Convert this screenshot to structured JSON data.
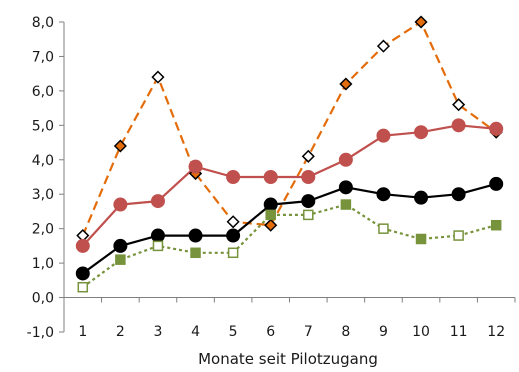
{
  "chart_data": {
    "type": "line",
    "title": "",
    "xlabel": "Monate seit Pilotzugang",
    "ylabel": "",
    "x": [
      1,
      2,
      3,
      4,
      5,
      6,
      7,
      8,
      9,
      10,
      11,
      12
    ],
    "ylim": [
      -1.0,
      8.0
    ],
    "yticks": [
      "-1,0",
      "0,0",
      "1,0",
      "2,0",
      "3,0",
      "4,0",
      "5,0",
      "6,0",
      "7,0",
      "8,0"
    ],
    "grid": false,
    "legend": "none",
    "series": [
      {
        "values": [
          1.8,
          4.4,
          6.4,
          3.6,
          2.2,
          2.1,
          4.1,
          6.2,
          7.3,
          8.0,
          5.6,
          4.8
        ],
        "color": "#e46c0a",
        "dash": "dashed",
        "marker": "diamond-alternating"
      },
      {
        "values": [
          1.5,
          2.7,
          2.8,
          3.8,
          3.5,
          3.5,
          3.5,
          4.0,
          4.7,
          4.8,
          5.0,
          4.9
        ],
        "color": "#c0504d",
        "dash": "solid",
        "marker": "circle"
      },
      {
        "values": [
          0.7,
          1.5,
          1.8,
          1.8,
          1.8,
          2.7,
          2.8,
          3.2,
          3.0,
          2.9,
          3.0,
          3.3
        ],
        "color": "#000000",
        "dash": "solid",
        "marker": "circle"
      },
      {
        "values": [
          0.3,
          1.1,
          1.5,
          1.3,
          1.3,
          2.4,
          2.4,
          2.7,
          2.0,
          1.7,
          1.8,
          2.1
        ],
        "color": "#77933c",
        "dash": "dotted",
        "marker": "square-alternating"
      }
    ]
  }
}
